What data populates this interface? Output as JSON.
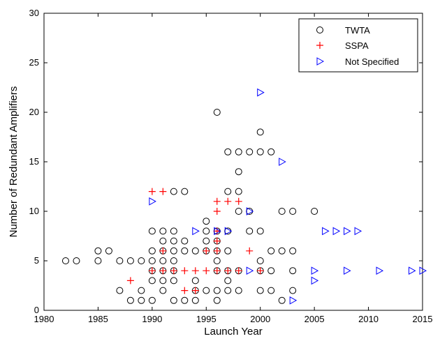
{
  "chart_data": {
    "type": "scatter",
    "title": "",
    "xlabel": "Launch Year",
    "ylabel": "Number of Redundant Amplifiers",
    "xlim": [
      1980,
      2015
    ],
    "ylim": [
      0,
      30
    ],
    "xticks": [
      "1980",
      "1985",
      "1990",
      "1995",
      "2000",
      "2005",
      "2010",
      "2015"
    ],
    "yticks": [
      "0",
      "5",
      "10",
      "15",
      "20",
      "25",
      "30"
    ],
    "grid": false,
    "legend_position": "top-right",
    "series": [
      {
        "name": "TWTA",
        "marker": "circle",
        "color": "#000000",
        "points": [
          [
            1982,
            5
          ],
          [
            1983,
            5
          ],
          [
            1985,
            5
          ],
          [
            1985,
            6
          ],
          [
            1986,
            6
          ],
          [
            1987,
            2
          ],
          [
            1987,
            5
          ],
          [
            1988,
            1
          ],
          [
            1988,
            5
          ],
          [
            1989,
            1
          ],
          [
            1989,
            2
          ],
          [
            1989,
            5
          ],
          [
            1990,
            1
          ],
          [
            1990,
            3
          ],
          [
            1990,
            4
          ],
          [
            1990,
            5
          ],
          [
            1990,
            6
          ],
          [
            1990,
            8
          ],
          [
            1991,
            2
          ],
          [
            1991,
            3
          ],
          [
            1991,
            4
          ],
          [
            1991,
            5
          ],
          [
            1991,
            6
          ],
          [
            1991,
            7
          ],
          [
            1991,
            8
          ],
          [
            1992,
            1
          ],
          [
            1992,
            3
          ],
          [
            1992,
            4
          ],
          [
            1992,
            5
          ],
          [
            1992,
            6
          ],
          [
            1992,
            7
          ],
          [
            1992,
            8
          ],
          [
            1992,
            12
          ],
          [
            1993,
            1
          ],
          [
            1993,
            6
          ],
          [
            1993,
            7
          ],
          [
            1993,
            12
          ],
          [
            1994,
            1
          ],
          [
            1994,
            2
          ],
          [
            1994,
            3
          ],
          [
            1994,
            6
          ],
          [
            1995,
            2
          ],
          [
            1995,
            6
          ],
          [
            1995,
            7
          ],
          [
            1995,
            8
          ],
          [
            1995,
            9
          ],
          [
            1996,
            1
          ],
          [
            1996,
            2
          ],
          [
            1996,
            4
          ],
          [
            1996,
            5
          ],
          [
            1996,
            6
          ],
          [
            1996,
            7
          ],
          [
            1996,
            8
          ],
          [
            1996,
            20
          ],
          [
            1997,
            2
          ],
          [
            1997,
            3
          ],
          [
            1997,
            4
          ],
          [
            1997,
            6
          ],
          [
            1997,
            8
          ],
          [
            1997,
            12
          ],
          [
            1997,
            16
          ],
          [
            1998,
            2
          ],
          [
            1998,
            4
          ],
          [
            1998,
            10
          ],
          [
            1998,
            12
          ],
          [
            1998,
            14
          ],
          [
            1998,
            16
          ],
          [
            1999,
            8
          ],
          [
            1999,
            10
          ],
          [
            1999,
            16
          ],
          [
            2000,
            2
          ],
          [
            2000,
            4
          ],
          [
            2000,
            5
          ],
          [
            2000,
            8
          ],
          [
            2000,
            16
          ],
          [
            2000,
            18
          ],
          [
            2001,
            2
          ],
          [
            2001,
            4
          ],
          [
            2001,
            6
          ],
          [
            2001,
            16
          ],
          [
            2002,
            1
          ],
          [
            2002,
            6
          ],
          [
            2002,
            10
          ],
          [
            2003,
            2
          ],
          [
            2003,
            4
          ],
          [
            2003,
            6
          ],
          [
            2003,
            10
          ],
          [
            2005,
            10
          ]
        ]
      },
      {
        "name": "SSPA",
        "marker": "plus",
        "color": "#ff0000",
        "points": [
          [
            1988,
            3
          ],
          [
            1990,
            4
          ],
          [
            1990,
            12
          ],
          [
            1991,
            4
          ],
          [
            1991,
            6
          ],
          [
            1991,
            12
          ],
          [
            1992,
            4
          ],
          [
            1993,
            2
          ],
          [
            1993,
            4
          ],
          [
            1994,
            2
          ],
          [
            1994,
            4
          ],
          [
            1995,
            4
          ],
          [
            1995,
            6
          ],
          [
            1996,
            4
          ],
          [
            1996,
            6
          ],
          [
            1996,
            7
          ],
          [
            1996,
            8
          ],
          [
            1996,
            10
          ],
          [
            1996,
            11
          ],
          [
            1997,
            4
          ],
          [
            1997,
            11
          ],
          [
            1998,
            4
          ],
          [
            1998,
            11
          ],
          [
            1999,
            6
          ],
          [
            2000,
            4
          ]
        ]
      },
      {
        "name": "Not Specified",
        "marker": "triangle-right",
        "color": "#0000ff",
        "points": [
          [
            1990,
            11
          ],
          [
            1994,
            8
          ],
          [
            1996,
            8
          ],
          [
            1997,
            8
          ],
          [
            1999,
            4
          ],
          [
            1999,
            10
          ],
          [
            2000,
            22
          ],
          [
            2002,
            15
          ],
          [
            2003,
            1
          ],
          [
            2005,
            3
          ],
          [
            2005,
            4
          ],
          [
            2006,
            8
          ],
          [
            2007,
            8
          ],
          [
            2008,
            4
          ],
          [
            2008,
            8
          ],
          [
            2009,
            8
          ],
          [
            2011,
            4
          ],
          [
            2014,
            4
          ],
          [
            2015,
            4
          ]
        ]
      }
    ]
  }
}
